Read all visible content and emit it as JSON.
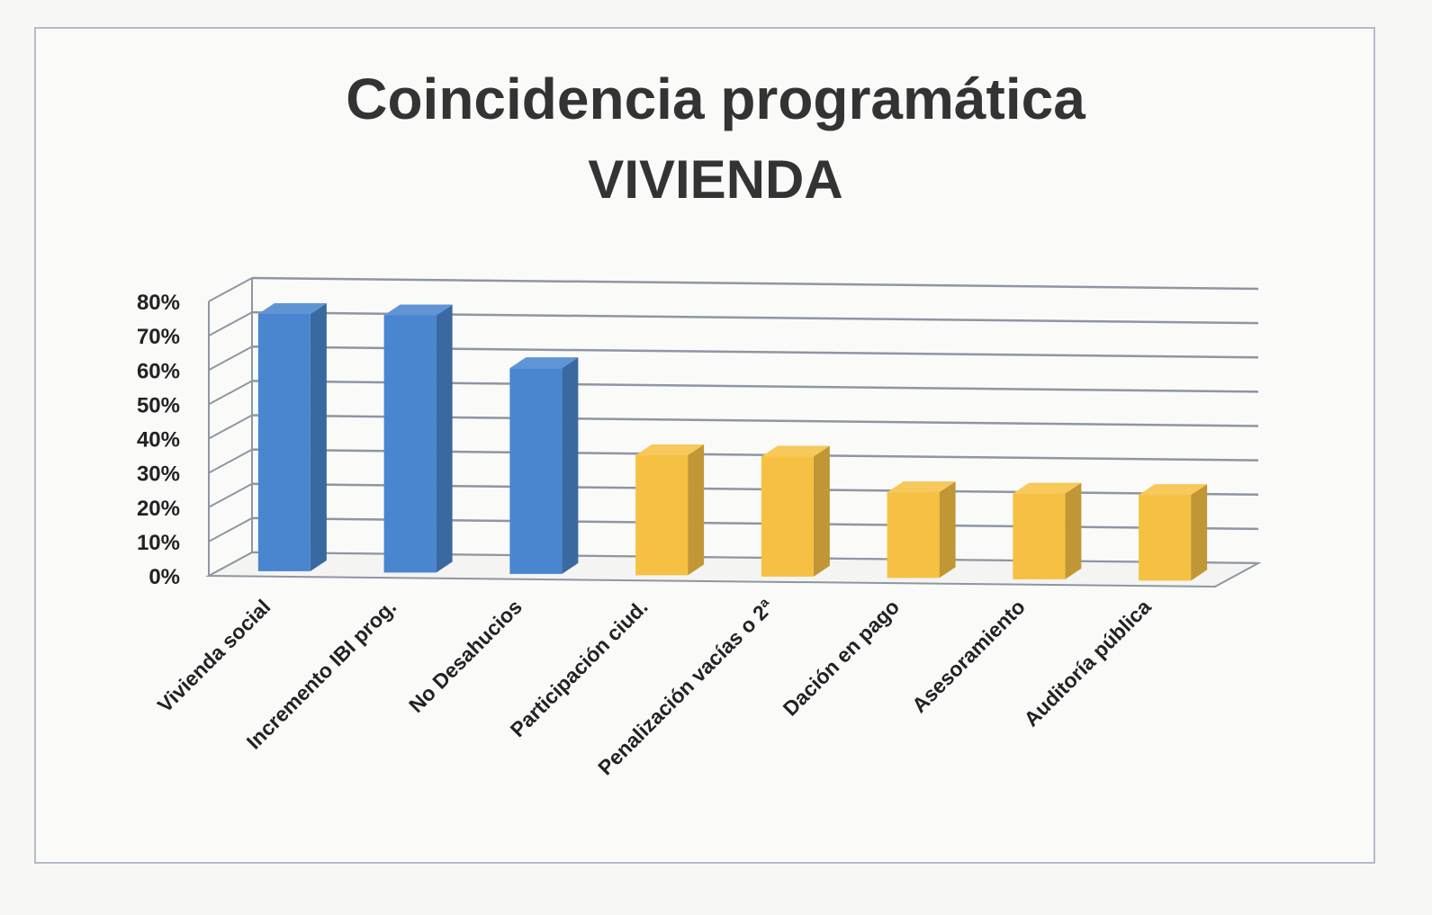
{
  "chart_data": {
    "type": "bar",
    "title": "Coincidencia programática",
    "subtitle": "VIVIENDA",
    "categories": [
      "Vivienda social",
      "Incremento IBI prog.",
      "No Desahucios",
      "Participación ciud.",
      "Penalización vacías o 2ª",
      "Dación en pago",
      "Asesoramiento",
      "Auditoría pública"
    ],
    "values": [
      0.75,
      0.75,
      0.6,
      0.35,
      0.35,
      0.25,
      0.25,
      0.25
    ],
    "value_format": "percent",
    "ylim": [
      0,
      0.8
    ],
    "yticks": [
      "0%",
      "10%",
      "20%",
      "30%",
      "40%",
      "50%",
      "60%",
      "70%",
      "80%"
    ],
    "grid": true,
    "three_d": true,
    "bar_colors": [
      "#4a86cf",
      "#4a86cf",
      "#4a86cf",
      "#f6c143",
      "#f6c143",
      "#f6c143",
      "#f6c143",
      "#f6c143"
    ],
    "xlabel": "",
    "ylabel": "",
    "legend": "none"
  }
}
